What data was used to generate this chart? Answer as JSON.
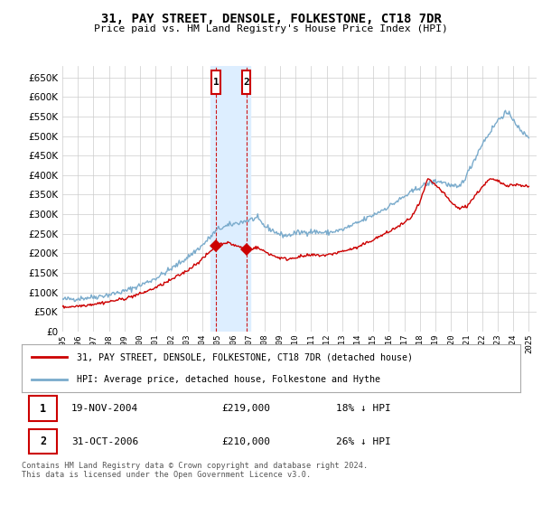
{
  "title": "31, PAY STREET, DENSOLE, FOLKESTONE, CT18 7DR",
  "subtitle": "Price paid vs. HM Land Registry's House Price Index (HPI)",
  "ylabel_ticks": [
    0,
    50000,
    100000,
    150000,
    200000,
    250000,
    300000,
    350000,
    400000,
    450000,
    500000,
    550000,
    600000,
    650000
  ],
  "ylim": [
    0,
    680000
  ],
  "xlim_start": 1995.0,
  "xlim_end": 2025.5,
  "red_line_label": "31, PAY STREET, DENSOLE, FOLKESTONE, CT18 7DR (detached house)",
  "blue_line_label": "HPI: Average price, detached house, Folkestone and Hythe",
  "sale1_date_x": 2004.88,
  "sale1_price": 219000,
  "sale1_label": "1",
  "sale1_date_str": "19-NOV-2004",
  "sale1_amount_str": "£219,000",
  "sale1_hpi_str": "18% ↓ HPI",
  "sale2_date_x": 2006.83,
  "sale2_price": 210000,
  "sale2_label": "2",
  "sale2_date_str": "31-OCT-2006",
  "sale2_amount_str": "£210,000",
  "sale2_hpi_str": "26% ↓ HPI",
  "shade_x_start": 2004.5,
  "shade_x_end": 2007.1,
  "red_color": "#cc0000",
  "blue_color": "#7aabcc",
  "shade_color": "#ddeeff",
  "grid_color": "#cccccc",
  "background_color": "#ffffff",
  "footnote": "Contains HM Land Registry data © Crown copyright and database right 2024.\nThis data is licensed under the Open Government Licence v3.0.",
  "hpi_waypoints_x": [
    1995.0,
    1996.0,
    1997.0,
    1998.0,
    1999.0,
    2000.0,
    2001.0,
    2002.0,
    2003.0,
    2004.0,
    2005.0,
    2006.0,
    2007.0,
    2007.5,
    2008.0,
    2009.0,
    2009.5,
    2010.0,
    2011.0,
    2012.0,
    2013.0,
    2014.0,
    2015.0,
    2016.0,
    2017.0,
    2018.0,
    2019.0,
    2019.5,
    2020.0,
    2020.5,
    2021.0,
    2021.5,
    2022.0,
    2022.5,
    2023.0,
    2023.5,
    2024.0,
    2024.5,
    2025.0
  ],
  "hpi_waypoints_y": [
    82000,
    84000,
    88000,
    94000,
    103000,
    118000,
    136000,
    160000,
    188000,
    220000,
    262000,
    275000,
    285000,
    290000,
    270000,
    248000,
    245000,
    252000,
    256000,
    252000,
    260000,
    278000,
    298000,
    320000,
    345000,
    370000,
    385000,
    382000,
    372000,
    368000,
    400000,
    440000,
    480000,
    510000,
    540000,
    560000,
    545000,
    510000,
    500000
  ],
  "red_waypoints_x": [
    1995.0,
    1996.0,
    1997.0,
    1998.0,
    1999.0,
    2000.0,
    2001.0,
    2002.0,
    2003.0,
    2004.0,
    2004.88,
    2005.5,
    2006.0,
    2006.83,
    2007.5,
    2008.0,
    2008.5,
    2009.0,
    2009.5,
    2010.0,
    2011.0,
    2012.0,
    2013.0,
    2014.0,
    2015.0,
    2016.0,
    2017.0,
    2017.5,
    2018.0,
    2018.5,
    2019.0,
    2019.5,
    2020.0,
    2020.5,
    2021.0,
    2022.0,
    2022.5,
    2023.0,
    2023.5,
    2024.0,
    2024.5,
    2025.0
  ],
  "red_waypoints_y": [
    62000,
    65000,
    70000,
    76000,
    84000,
    96000,
    112000,
    132000,
    155000,
    185000,
    219000,
    228000,
    222000,
    210000,
    215000,
    205000,
    195000,
    188000,
    185000,
    190000,
    195000,
    195000,
    205000,
    215000,
    235000,
    255000,
    278000,
    295000,
    330000,
    390000,
    375000,
    355000,
    330000,
    315000,
    320000,
    370000,
    390000,
    385000,
    375000,
    375000,
    375000,
    370000
  ]
}
